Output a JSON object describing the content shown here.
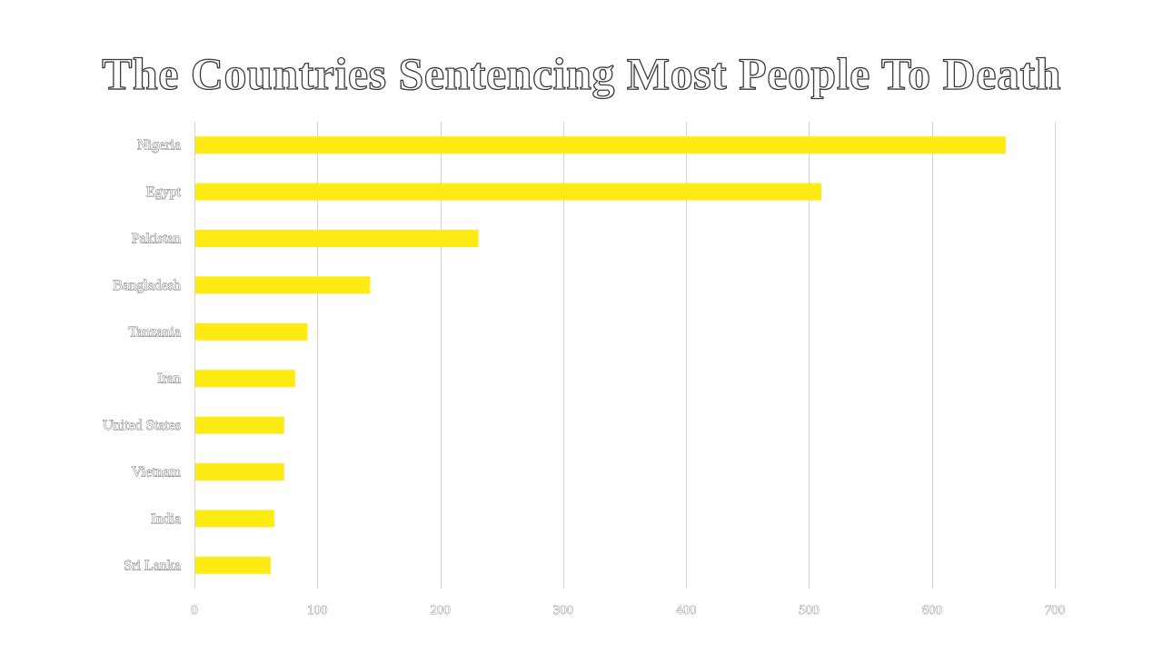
{
  "chart_data": {
    "type": "bar",
    "orientation": "horizontal",
    "title": "The Countries Sentencing Most People To Death",
    "categories": [
      "Nigeria",
      "Egypt",
      "Pakistan",
      "Bangladesh",
      "Tanzania",
      "Iran",
      "United States",
      "Vietnam",
      "India",
      "Sri Lanka"
    ],
    "values": [
      660,
      510,
      231,
      143,
      92,
      82,
      73,
      73,
      65,
      62
    ],
    "xlim": [
      0,
      700
    ],
    "xticks": [
      0,
      100,
      200,
      300,
      400,
      500,
      600,
      700
    ],
    "xlabel": "",
    "ylabel": "",
    "grid": true,
    "legend": "none",
    "colors": {
      "bar": "#ffeb14",
      "grid": "#d4d4d4",
      "label_outline": "#444444"
    }
  }
}
